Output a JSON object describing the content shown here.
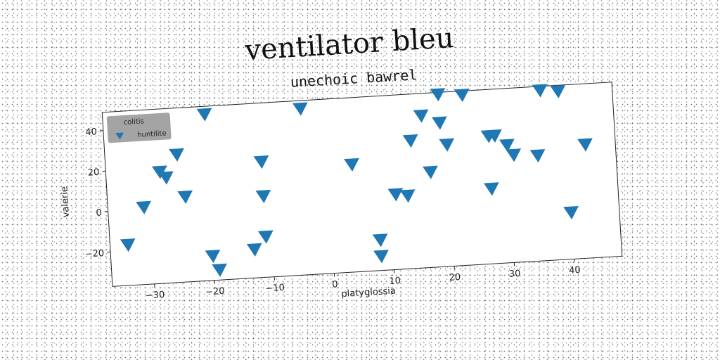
{
  "chart_data": {
    "type": "scatter",
    "title": "ventilator bleu",
    "subtitle": "unechoic bawrel",
    "xlabel": "platyglossia",
    "ylabel": "valerie",
    "xlim": [
      -37,
      48
    ],
    "ylim": [
      -37,
      49
    ],
    "xticks": [
      -30,
      -20,
      -10,
      0,
      10,
      20,
      30,
      40
    ],
    "yticks": [
      -20,
      0,
      20,
      40
    ],
    "grid": false,
    "legend": {
      "title": "colitis",
      "position": "top-left"
    },
    "series": [
      {
        "name": "huntilite",
        "marker": "triangle-down",
        "color": "#1f77b4",
        "points": [
          [
            -20,
            45
          ],
          [
            -4,
            45
          ],
          [
            19,
            48
          ],
          [
            23,
            47
          ],
          [
            36,
            47
          ],
          [
            39,
            46
          ],
          [
            16,
            38
          ],
          [
            19,
            34
          ],
          [
            -25,
            26
          ],
          [
            14,
            26
          ],
          [
            20,
            23
          ],
          [
            27,
            26
          ],
          [
            28,
            26
          ],
          [
            30,
            21
          ],
          [
            -28,
            18
          ],
          [
            -27,
            15
          ],
          [
            -11,
            20
          ],
          [
            4,
            16
          ],
          [
            31,
            16
          ],
          [
            35,
            15
          ],
          [
            43,
            19
          ],
          [
            -24,
            5
          ],
          [
            -11,
            3
          ],
          [
            17,
            10
          ],
          [
            -31,
            1
          ],
          [
            11,
            0
          ],
          [
            13,
            -1
          ],
          [
            27,
            0
          ],
          [
            -34,
            -17
          ],
          [
            -11,
            -17
          ],
          [
            -13,
            -23
          ],
          [
            -20,
            -25
          ],
          [
            -19,
            -32
          ],
          [
            8,
            -22
          ],
          [
            8,
            -30
          ],
          [
            40,
            -14
          ]
        ]
      }
    ]
  }
}
